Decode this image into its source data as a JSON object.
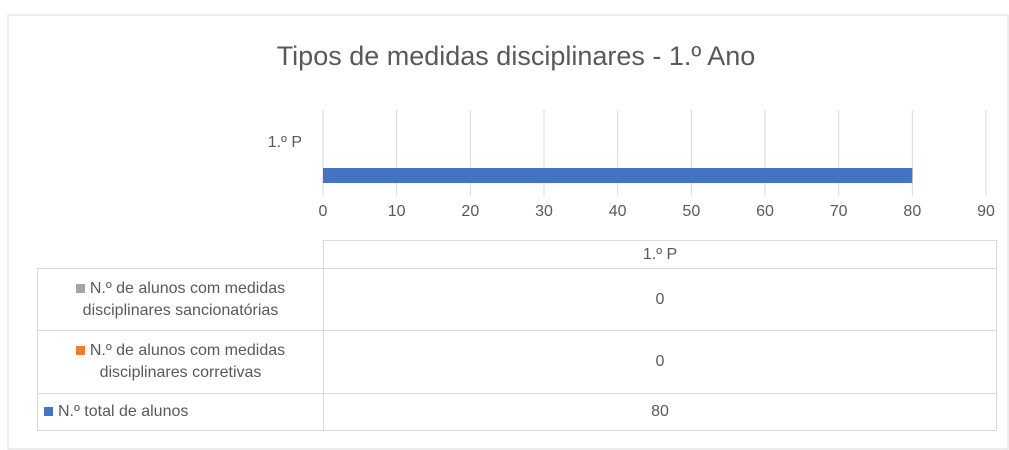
{
  "chart_data": {
    "type": "bar",
    "orientation": "horizontal",
    "title": "Tipos de medidas disciplinares - 1.º Ano",
    "categories": [
      "1.º P"
    ],
    "series": [
      {
        "name": "N.º de alunos com medidas disciplinares sancionatórias",
        "color": "#a5a5a5",
        "values": [
          0
        ]
      },
      {
        "name": "N.º de alunos com medidas disciplinares corretivas",
        "color": "#ed7d31",
        "values": [
          0
        ]
      },
      {
        "name": "N.º total de alunos",
        "color": "#4472c4",
        "values": [
          80
        ]
      }
    ],
    "xlim": [
      0,
      90
    ],
    "xticks": [
      0,
      10,
      20,
      30,
      40,
      50,
      60,
      70,
      80,
      90
    ],
    "grid": true,
    "data_table": true
  }
}
